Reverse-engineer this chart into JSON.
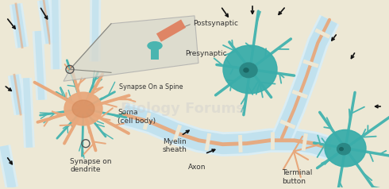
{
  "bg_color": "#ede8d5",
  "orange": "#d4895a",
  "orange_light": "#e8a87c",
  "teal": "#4ab5b0",
  "teal_dark": "#3a9590",
  "teal_body": "#3aadaa",
  "sheath_outer": "#bde0ee",
  "sheath_inner": "#d8eef8",
  "arrow_color": "#111111",
  "label_color": "#333333",
  "inset_bg": "#ddddd0",
  "post_color": "#e08060",
  "pre_color": "#4ab5b0",
  "gray_line": "#888880",
  "labels": {
    "postsynaptic": "Postsynaptic",
    "presynaptic": "Presynaptic",
    "synapse_spine": "Synapse On a Spine",
    "soma": "Soma\n(cell body)",
    "synapse_dendrite": "Synapse on\ndendrite",
    "axon": "Axon",
    "myelin": "Myelin\nsheath",
    "terminal": "Terminal\nbutton"
  },
  "figsize": [
    4.9,
    2.38
  ],
  "dpi": 100
}
